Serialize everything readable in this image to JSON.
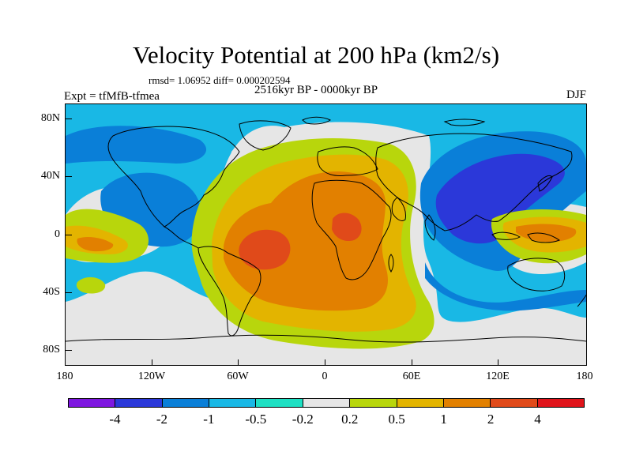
{
  "title": "Velocity Potential at 200 hPa (km2/s)",
  "stats": "rmsd= 1.06952 diff= 0.000202594",
  "period": "2516kyr BP - 0000kyr BP",
  "experiment": "Expt = tfMfB-tfmea",
  "season": "DJF",
  "map": {
    "projection": "cylindrical equidistant",
    "lon_range": [
      -180,
      180
    ],
    "lat_range": [
      -90,
      90
    ],
    "coastlines": true,
    "lat_ticks": [
      "80N",
      "40N",
      "0",
      "40S",
      "80S"
    ],
    "lon_ticks": [
      "180",
      "120W",
      "60W",
      "0",
      "60E",
      "120E",
      "180"
    ],
    "field_features": [
      {
        "sign": "positive",
        "level": "max above 2",
        "location": "South America / South Atlantic, centred near 20S 50W"
      },
      {
        "sign": "positive",
        "level": "max above 2",
        "location": "central Africa, near 5N 15E"
      },
      {
        "sign": "positive",
        "level": "1 to 2",
        "location": "broad band from Atlantic across Africa to Indian Ocean, 60S to 45N"
      },
      {
        "sign": "positive",
        "level": "1 to 2",
        "location": "western Pacific / New Guinea, 15S to 5N, 125E to 160E"
      },
      {
        "sign": "positive",
        "level": "1 to 2",
        "location": "central Pacific near 15S 160W"
      },
      {
        "sign": "negative",
        "level": "below -2",
        "location": "East Asia / western Pacific, 0 to 45N, 75E to 160E"
      },
      {
        "sign": "negative",
        "level": "-1 to -2",
        "location": "North America / northeast Pacific, 10N to 50N, 150W to 100W"
      },
      {
        "sign": "negative",
        "level": "-0.5 to -1",
        "location": "Indian Ocean to southern Australia, 60S to 20N"
      },
      {
        "sign": "negative",
        "level": "-0.5 to -1",
        "location": "northern high latitudes and North Pacific"
      }
    ]
  },
  "colorbar": {
    "labels": [
      "-4",
      "-2",
      "-1",
      "-0.5",
      "-0.2",
      "0.2",
      "0.5",
      "1",
      "2",
      "4"
    ],
    "colors": [
      "#7e17e0",
      "#2b38d9",
      "#0a7fd8",
      "#19b8e5",
      "#1ee0c3",
      "#e6e6e6",
      "#b8d60c",
      "#e3b400",
      "#e28000",
      "#e04a1a",
      "#e0141b"
    ]
  }
}
